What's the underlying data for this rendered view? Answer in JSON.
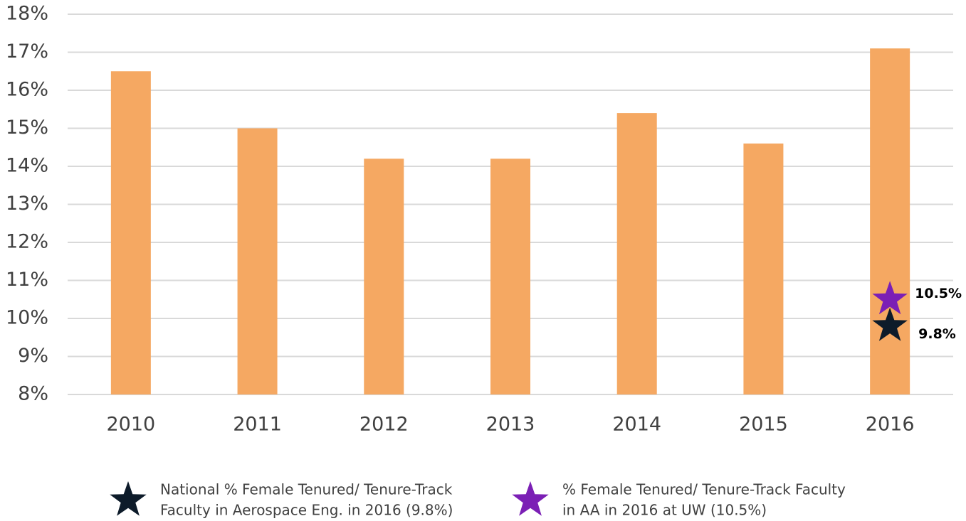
{
  "chart_data": {
    "type": "bar",
    "categories": [
      "2010",
      "2011",
      "2012",
      "2013",
      "2014",
      "2015",
      "2016"
    ],
    "values": [
      16.5,
      15.0,
      14.2,
      14.2,
      15.4,
      14.6,
      17.1
    ],
    "color": "#f5a862",
    "ylim": [
      8,
      18
    ],
    "yticks": [
      {
        "value": 8,
        "label": "8%"
      },
      {
        "value": 9,
        "label": "9%"
      },
      {
        "value": 10,
        "label": "10%"
      },
      {
        "value": 11,
        "label": "11%"
      },
      {
        "value": 12,
        "label": "12%"
      },
      {
        "value": 13,
        "label": "13%"
      },
      {
        "value": 14,
        "label": "14%"
      },
      {
        "value": 15,
        "label": "15%"
      },
      {
        "value": 16,
        "label": "16%"
      },
      {
        "value": 17,
        "label": "17%"
      },
      {
        "value": 18,
        "label": "18%"
      }
    ],
    "grid": true,
    "legend": "bottom",
    "series": [
      {
        "name": [
          "National % Female Tenured/ Tenure-Track",
          "Faculty in Aerospace Eng. in 2016 (9.8%)"
        ],
        "color": "#0d1b2a",
        "values": [
          null,
          null,
          null,
          null,
          null,
          null,
          9.8
        ],
        "value_labels": [
          null,
          null,
          null,
          null,
          null,
          null,
          "9.8%"
        ]
      },
      {
        "name": [
          "% Female Tenured/ Tenure-Track Faculty",
          "in AA in 2016 at UW (10.5%)"
        ],
        "color": "#7b1fb5",
        "values": [
          null,
          null,
          null,
          null,
          null,
          null,
          10.5
        ],
        "value_labels": [
          null,
          null,
          null,
          null,
          null,
          null,
          "10.5%"
        ]
      }
    ]
  }
}
